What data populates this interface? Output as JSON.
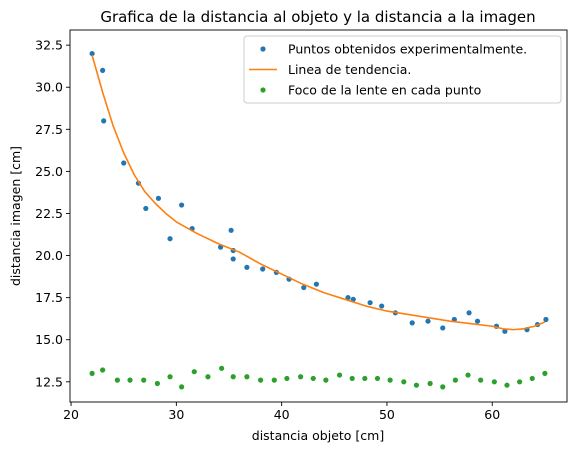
{
  "chart_data": {
    "type": "scatter",
    "title": "Grafica de la distancia al objeto y la distancia a la imagen",
    "xlabel": "distancia objeto [cm]",
    "ylabel": "distancia imagen [cm]",
    "xlim": [
      19.9,
      67.1
    ],
    "ylim": [
      11.3,
      33.4
    ],
    "xticks": [
      20,
      30,
      40,
      50,
      60
    ],
    "yticks": [
      12.5,
      15.0,
      17.5,
      20.0,
      22.5,
      25.0,
      27.5,
      30.0,
      32.5
    ],
    "ytick_labels": [
      "12.5",
      "15.0",
      "17.5",
      "20.0",
      "22.5",
      "25.0",
      "27.5",
      "30.0",
      "32.5"
    ],
    "grid": false,
    "legend_position": "top-right",
    "series": [
      {
        "name": "Puntos obtenidos experimentalmente.",
        "kind": "points",
        "color": "#1f77b4",
        "x": [
          22.0,
          23.0,
          23.1,
          25.0,
          26.4,
          27.1,
          28.3,
          29.4,
          30.5,
          31.5,
          34.2,
          35.2,
          35.4,
          35.4,
          36.7,
          38.2,
          39.5,
          40.7,
          42.1,
          43.3,
          46.3,
          46.8,
          48.4,
          49.5,
          50.8,
          52.4,
          53.9,
          55.3,
          56.4,
          57.8,
          58.6,
          60.4,
          61.2,
          63.3,
          64.3,
          65.1
        ],
        "y": [
          32.0,
          31.0,
          28.0,
          25.5,
          24.3,
          22.8,
          23.4,
          21.0,
          23.0,
          21.6,
          20.5,
          21.5,
          20.3,
          19.8,
          19.3,
          19.2,
          19.0,
          18.6,
          18.1,
          18.3,
          17.5,
          17.4,
          17.2,
          17.0,
          16.6,
          16.0,
          16.1,
          15.7,
          16.2,
          16.6,
          16.1,
          15.8,
          15.5,
          15.6,
          15.9,
          16.2
        ]
      },
      {
        "name": "Linea de tendencia.",
        "kind": "line",
        "color": "#ff7f0e",
        "x": [
          22.0,
          23.0,
          24.0,
          25.0,
          26.0,
          27.0,
          28.0,
          29.0,
          30.0,
          32.0,
          34.0,
          36.0,
          38.0,
          40.0,
          42.0,
          44.0,
          46.0,
          48.0,
          50.0,
          52.0,
          54.0,
          56.0,
          58.0,
          60.0,
          61.0,
          62.0,
          63.0,
          64.0,
          65.0
        ],
        "y": [
          31.9,
          29.7,
          27.7,
          26.1,
          24.8,
          23.8,
          23.1,
          22.5,
          22.0,
          21.3,
          20.7,
          20.2,
          19.5,
          18.9,
          18.3,
          17.8,
          17.4,
          17.0,
          16.7,
          16.5,
          16.3,
          16.1,
          15.95,
          15.8,
          15.65,
          15.6,
          15.65,
          15.8,
          16.05
        ]
      },
      {
        "name": "Foco de la lente en cada punto",
        "kind": "points",
        "color": "#2ca02c",
        "x": [
          22.0,
          23.0,
          24.4,
          25.6,
          26.9,
          28.2,
          29.4,
          30.5,
          31.7,
          33.0,
          34.3,
          35.4,
          36.7,
          38.0,
          39.3,
          40.5,
          41.8,
          43.0,
          44.2,
          45.5,
          46.7,
          47.9,
          49.1,
          50.3,
          51.6,
          52.8,
          54.1,
          55.3,
          56.5,
          57.7,
          58.9,
          60.2,
          61.4,
          62.6,
          63.8,
          65.0
        ],
        "y": [
          13.0,
          13.2,
          12.6,
          12.6,
          12.6,
          12.4,
          12.8,
          12.2,
          13.1,
          12.8,
          13.3,
          12.8,
          12.8,
          12.6,
          12.6,
          12.7,
          12.8,
          12.7,
          12.6,
          12.9,
          12.7,
          12.7,
          12.7,
          12.6,
          12.5,
          12.3,
          12.4,
          12.2,
          12.6,
          12.9,
          12.6,
          12.5,
          12.3,
          12.5,
          12.7,
          13.0
        ]
      }
    ]
  }
}
